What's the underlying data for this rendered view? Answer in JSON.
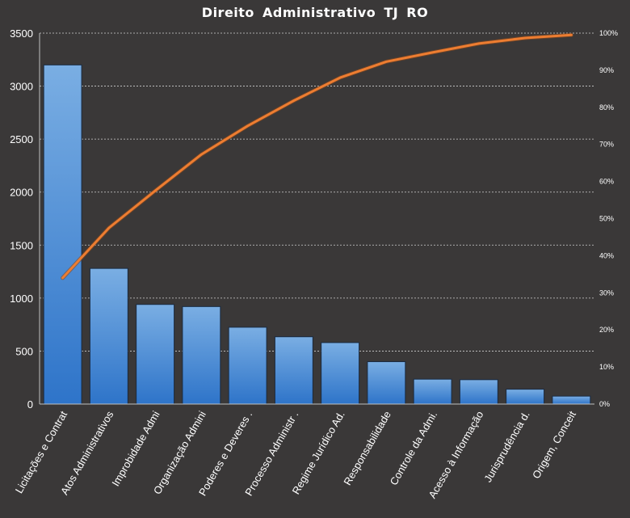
{
  "chart_data": {
    "type": "bar",
    "title": "Direito  Administrativo  TJ RO",
    "categories": [
      "Licitações e Contrat",
      "Atos Administrativos",
      "Improbidade Admi",
      "Organização Admini",
      "Poderes e Deveres .",
      "Processo Administr .",
      "Regime Jurídico Ad.",
      "Responsabilidade",
      "Controle da Admi.",
      "Acesso à Informação",
      "Jurisprudência d.",
      "Origem, Conceit"
    ],
    "values": [
      3200,
      1280,
      940,
      920,
      725,
      635,
      580,
      400,
      235,
      230,
      140,
      75
    ],
    "cumulative_percent": [
      34,
      47.5,
      57.5,
      67.3,
      75,
      81.8,
      88,
      92.3,
      94.8,
      97.2,
      98.7,
      99.5
    ],
    "ylim": [
      0,
      3500
    ],
    "y_ticks": [
      "0",
      "500",
      "1000",
      "1500",
      "2000",
      "2500",
      "3000",
      "3500"
    ],
    "y2lim": [
      0,
      100
    ],
    "y2_ticks": [
      "0%",
      "10%",
      "20%",
      "30%",
      "40%",
      "50%",
      "60%",
      "70%",
      "80%",
      "90%",
      "100%"
    ],
    "grid": true,
    "colors": {
      "background": "#3a3838",
      "bar_top": "#7aaee3",
      "bar_bottom": "#2e74c9",
      "bar_stroke": "#1a2a40",
      "line": "#ed7d31",
      "grid": "#d0d0d0",
      "text": "#ffffff"
    }
  }
}
